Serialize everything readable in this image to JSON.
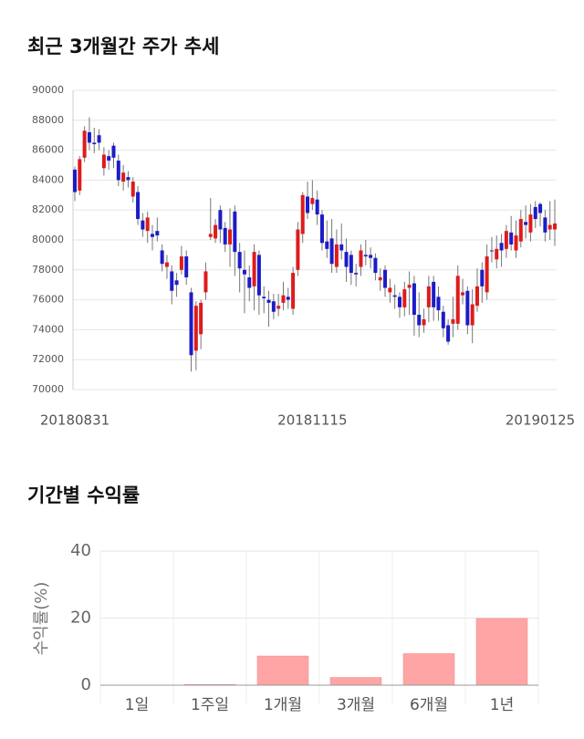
{
  "chart_data": [
    {
      "type": "candlestick",
      "title": "최근 3개월간 주가 추세",
      "up_color": "#dd1c1c",
      "down_color": "#1c1cc8",
      "categories": [
        "20180831",
        null,
        null,
        null,
        null,
        null,
        null,
        null,
        null,
        null,
        null,
        null,
        null,
        null,
        null,
        null,
        null,
        null,
        null,
        null,
        null,
        null,
        null,
        null,
        null,
        null,
        null,
        null,
        null,
        null,
        null,
        null,
        null,
        null,
        null,
        null,
        null,
        null,
        null,
        null,
        null,
        null,
        null,
        null,
        null,
        null,
        null,
        null,
        null,
        "20181115",
        null,
        null,
        null,
        null,
        null,
        null,
        null,
        null,
        null,
        null,
        null,
        null,
        null,
        null,
        null,
        null,
        null,
        null,
        null,
        null,
        null,
        null,
        null,
        null,
        null,
        null,
        null,
        null,
        null,
        null,
        null,
        null,
        null,
        null,
        null,
        null,
        null,
        null,
        null,
        null,
        null,
        null,
        null,
        null,
        null,
        null,
        "20190125",
        null,
        null,
        null
      ],
      "open": [
        84700,
        83300,
        85500,
        87200,
        86500,
        87000,
        84800,
        85600,
        86300,
        85300,
        83900,
        84200,
        82900,
        83200,
        81300,
        80600,
        80400,
        80600,
        79300,
        78200,
        77900,
        77300,
        78000,
        78900,
        76500,
        72600,
        73700,
        76500,
        80200,
        80100,
        82000,
        80800,
        79700,
        81900,
        79200,
        78000,
        77500,
        76900,
        79000,
        76200,
        76000,
        75900,
        75400,
        75800,
        76200,
        75400,
        78000,
        80400,
        82900,
        82400,
        82700,
        81700,
        79900,
        80100,
        78200,
        79700,
        79200,
        79000,
        77800,
        78200,
        79000,
        79000,
        78800,
        77300,
        78000,
        76500,
        76300,
        76200,
        75500,
        76800,
        77100,
        75000,
        74300,
        75500,
        77200,
        76200,
        75200,
        74300,
        74400,
        74400,
        76300,
        76600,
        74300,
        75600,
        78000,
        76500,
        79300,
        78700,
        79800,
        79400,
        80500,
        79300,
        79900,
        81200,
        80500,
        82200,
        82400,
        81500,
        80700,
        80700
      ],
      "high": [
        84900,
        85600,
        87600,
        88200,
        87500,
        87400,
        86200,
        86000,
        86500,
        85700,
        85000,
        84600,
        84200,
        83600,
        81800,
        81900,
        81000,
        81500,
        79700,
        79000,
        78300,
        77800,
        79600,
        79300,
        76800,
        75900,
        76000,
        78500,
        82800,
        81400,
        82300,
        81200,
        82100,
        82300,
        79800,
        79300,
        78300,
        79700,
        79300,
        76900,
        76600,
        76400,
        76400,
        77200,
        76800,
        78200,
        81200,
        83200,
        83900,
        84000,
        83300,
        82000,
        81300,
        81400,
        80700,
        81100,
        80100,
        79300,
        78400,
        79700,
        80000,
        79500,
        79100,
        78100,
        78300,
        77400,
        77000,
        76500,
        77200,
        77900,
        77600,
        76500,
        75400,
        77600,
        77600,
        76900,
        75600,
        74700,
        76200,
        78300,
        77400,
        76900,
        76700,
        78100,
        78500,
        79700,
        80200,
        80300,
        80400,
        81000,
        81600,
        81300,
        82000,
        82300,
        82400,
        82600,
        82500,
        82000,
        82600,
        82700
      ],
      "low": [
        82600,
        83000,
        85200,
        86000,
        85800,
        86000,
        84300,
        84700,
        84800,
        83600,
        83300,
        83500,
        82500,
        81000,
        80200,
        79800,
        79300,
        79900,
        77900,
        77400,
        75700,
        76200,
        77700,
        77000,
        71200,
        71300,
        72700,
        76000,
        80000,
        79800,
        79800,
        79200,
        78200,
        77600,
        76500,
        75100,
        75900,
        75300,
        75000,
        75100,
        74200,
        74700,
        74900,
        75300,
        75400,
        75000,
        77600,
        79800,
        81400,
        82000,
        81000,
        79300,
        78800,
        77800,
        77800,
        78700,
        77200,
        77000,
        76900,
        77600,
        78300,
        78100,
        77300,
        76600,
        76200,
        75800,
        75400,
        74800,
        74900,
        75000,
        73600,
        73500,
        73800,
        74500,
        74600,
        74600,
        73500,
        73000,
        73500,
        74000,
        75700,
        73700,
        73100,
        75200,
        75800,
        76000,
        78500,
        78100,
        78200,
        78800,
        79300,
        78800,
        79500,
        80100,
        79900,
        80800,
        80900,
        79900,
        80000,
        79600
      ],
      "close": [
        83200,
        85400,
        87300,
        86500,
        86400,
        86500,
        85700,
        85300,
        85500,
        84000,
        84500,
        84000,
        83900,
        81400,
        80700,
        81500,
        80200,
        80300,
        78400,
        78500,
        76600,
        77000,
        78900,
        77500,
        72300,
        75600,
        75800,
        77900,
        80400,
        81000,
        80700,
        79700,
        80700,
        79200,
        78100,
        77700,
        76800,
        79200,
        76300,
        76100,
        75800,
        75200,
        75600,
        76300,
        76000,
        77800,
        80700,
        83000,
        81800,
        82800,
        81700,
        79800,
        79400,
        78400,
        79700,
        79300,
        78200,
        77800,
        77700,
        79300,
        78900,
        78800,
        77800,
        77500,
        76800,
        76800,
        76200,
        75500,
        76700,
        77000,
        75000,
        74300,
        74700,
        76900,
        75500,
        75300,
        74100,
        73200,
        74700,
        77600,
        76500,
        74300,
        75700,
        76900,
        76900,
        78900,
        79300,
        79400,
        79300,
        80600,
        79700,
        80300,
        81400,
        81000,
        81700,
        81400,
        81800,
        80500,
        81000,
        81100
      ],
      "ylim": [
        70000,
        90000
      ],
      "yticks": [
        70000,
        72000,
        74000,
        76000,
        78000,
        80000,
        82000,
        84000,
        86000,
        88000,
        90000
      ],
      "grid": true
    },
    {
      "type": "bar",
      "title": "기간별 수익률",
      "ylabel": "수익률(%)",
      "categories": [
        "1일",
        "1주일",
        "1개월",
        "3개월",
        "6개월",
        "1년"
      ],
      "values": [
        0,
        0.2,
        8.7,
        2.3,
        9.4,
        19.9
      ],
      "color": "#ffa5a5",
      "ylim": [
        0,
        40
      ],
      "yticks": [
        0,
        20,
        40
      ],
      "grid": true
    }
  ]
}
